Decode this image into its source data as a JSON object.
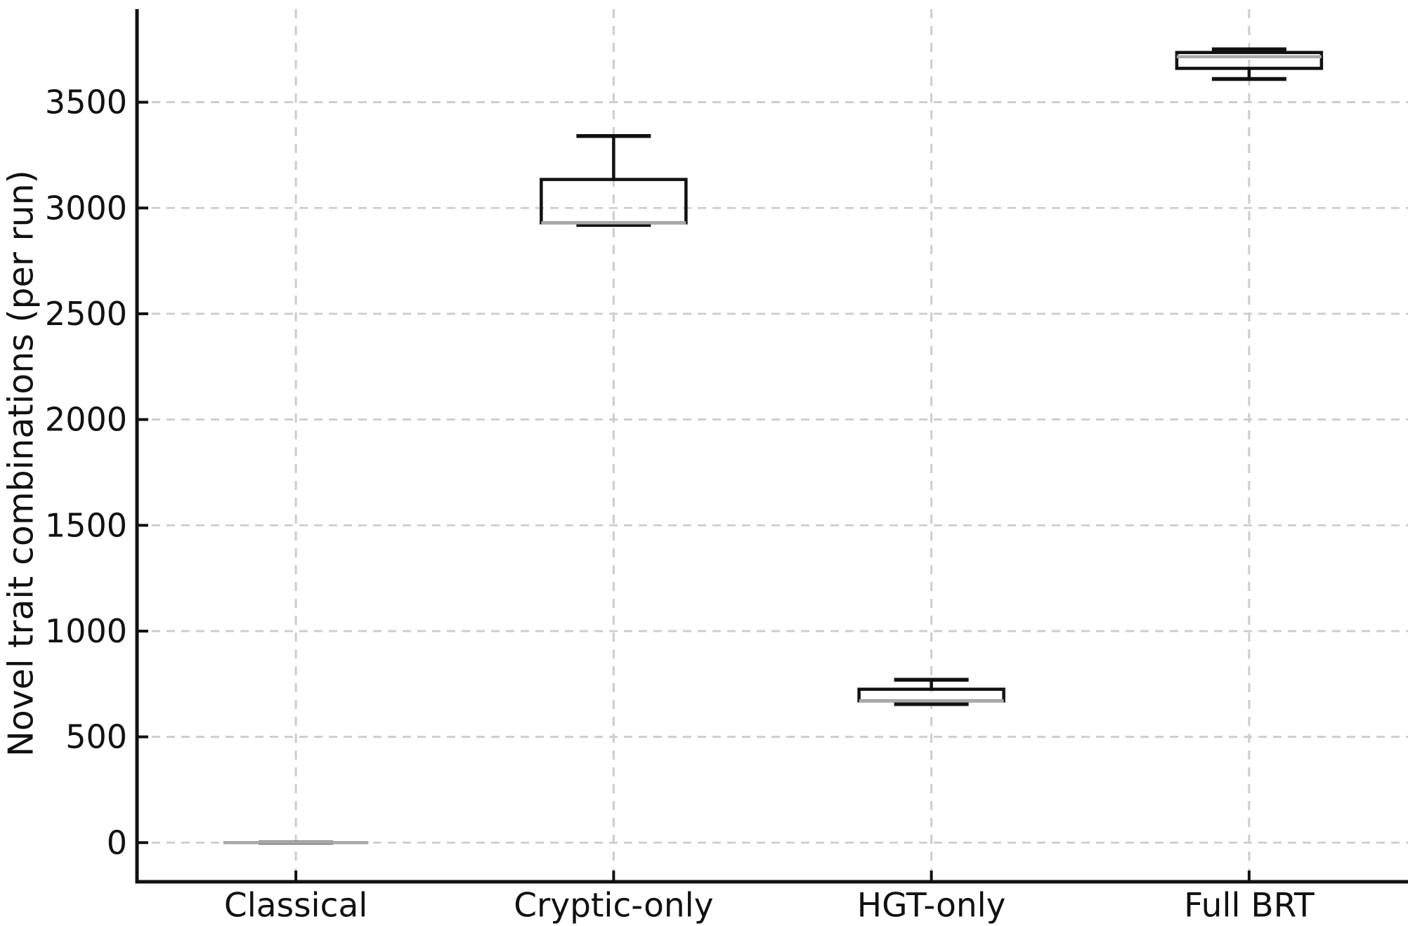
{
  "chart_data": {
    "type": "box",
    "title": "",
    "xlabel": "",
    "ylabel": "Novel trait combinations (per run)",
    "categories": [
      "Classical",
      "Cryptic-only",
      "HGT-only",
      "Full BRT"
    ],
    "boxes": [
      {
        "label": "Classical",
        "whisker_low": 0,
        "q1": 0,
        "median": 0,
        "q3": 0,
        "whisker_high": 0
      },
      {
        "label": "Cryptic-only",
        "whisker_low": 2920,
        "q1": 2930,
        "median": 2930,
        "q3": 3135,
        "whisker_high": 3340
      },
      {
        "label": "HGT-only",
        "whisker_low": 655,
        "q1": 670,
        "median": 670,
        "q3": 725,
        "whisker_high": 770
      },
      {
        "label": "Full BRT",
        "whisker_low": 3610,
        "q1": 3660,
        "median": 3715,
        "q3": 3735,
        "whisker_high": 3750
      }
    ],
    "yticks": [
      0,
      500,
      1000,
      1500,
      2000,
      2500,
      3000,
      3500
    ],
    "ylim": [
      -185,
      3940
    ],
    "grid": {
      "horizontal": true,
      "vertical": true,
      "style": "dashed"
    },
    "legend_position": "none",
    "colors": {
      "box_edge": "#111111",
      "whisker": "#111111",
      "median": "#a9a9a9",
      "grid": "#cdcdcd",
      "spine": "#111111",
      "text": "#111111",
      "background": "#ffffff"
    }
  }
}
